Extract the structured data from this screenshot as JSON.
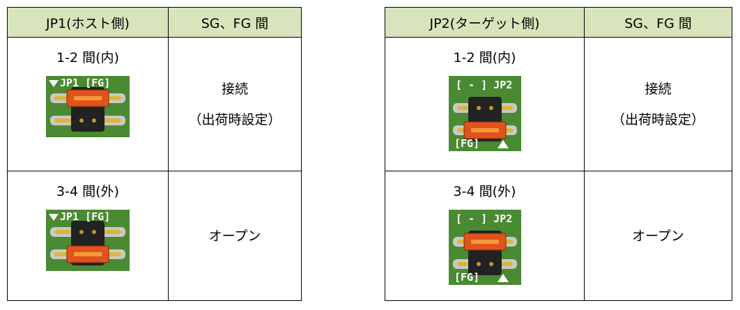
{
  "tables": [
    {
      "header": [
        "JP1(ホスト側)",
        "SG、FG 間"
      ],
      "rows": [
        {
          "position": "1-2 間(内)",
          "photo_labels": [
            "JP1 [FG]"
          ],
          "state": [
            "接続",
            "（出荷時設定）"
          ]
        },
        {
          "position": "3-4 間(外)",
          "photo_labels": [
            "JP1 [FG]"
          ],
          "state": [
            "オープン"
          ]
        }
      ]
    },
    {
      "header": [
        "JP2(ターゲット側)",
        "SG、FG 間"
      ],
      "rows": [
        {
          "position": "1-2 間(内)",
          "photo_labels": [
            "[ - ] JP2",
            "[FG]"
          ],
          "state": [
            "接続",
            "（出荷時設定）"
          ]
        },
        {
          "position": "3-4 間(外)",
          "photo_labels": [
            "[ - ] JP2",
            "[FG]"
          ],
          "state": [
            "オープン"
          ]
        }
      ]
    }
  ]
}
